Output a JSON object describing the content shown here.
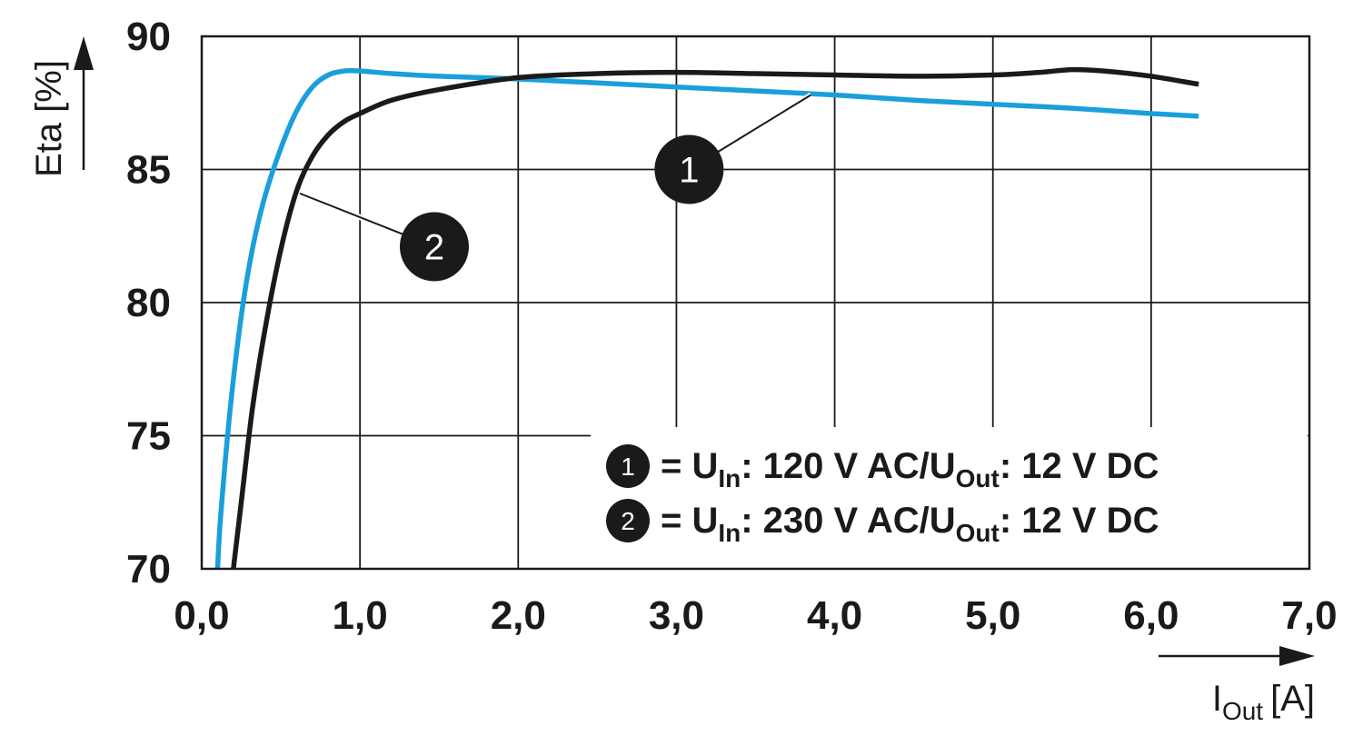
{
  "chart_data": {
    "type": "line",
    "xlabel": "I",
    "xlabel_sub": "Out",
    "xlabel_unit": "[A]",
    "ylabel": "Eta [%]",
    "xlim": [
      0,
      7
    ],
    "ylim": [
      70,
      90
    ],
    "x_ticks": [
      "0,0",
      "1,0",
      "2,0",
      "3,0",
      "4,0",
      "5,0",
      "6,0",
      "7,0"
    ],
    "y_ticks": [
      "70",
      "75",
      "80",
      "85",
      "90"
    ],
    "grid": true,
    "series": [
      {
        "name": "1",
        "color": "#1a9fdb",
        "x": [
          0.1,
          0.12,
          0.18,
          0.25,
          0.32,
          0.4,
          0.5,
          0.6,
          0.7,
          0.8,
          0.9,
          1.0,
          1.2,
          1.5,
          2.0,
          2.5,
          3.0,
          3.5,
          4.0,
          4.5,
          5.0,
          5.5,
          6.0,
          6.3
        ],
        "y": [
          70.0,
          72.0,
          76.0,
          79.5,
          82.0,
          84.0,
          85.8,
          87.2,
          88.1,
          88.55,
          88.7,
          88.7,
          88.6,
          88.5,
          88.4,
          88.25,
          88.1,
          87.95,
          87.8,
          87.6,
          87.45,
          87.3,
          87.1,
          87.0
        ]
      },
      {
        "name": "2",
        "color": "#1a1a1a",
        "x": [
          0.2,
          0.25,
          0.32,
          0.4,
          0.5,
          0.6,
          0.7,
          0.8,
          0.9,
          1.0,
          1.2,
          1.5,
          2.0,
          2.5,
          3.0,
          3.5,
          4.0,
          4.5,
          5.0,
          5.3,
          5.5,
          5.7,
          6.0,
          6.3
        ],
        "y": [
          70.0,
          72.5,
          76.0,
          79.0,
          82.0,
          84.2,
          85.5,
          86.3,
          86.8,
          87.1,
          87.6,
          88.0,
          88.45,
          88.6,
          88.65,
          88.6,
          88.55,
          88.5,
          88.55,
          88.65,
          88.75,
          88.7,
          88.5,
          88.2
        ]
      }
    ],
    "callouts": [
      {
        "label": "1",
        "point_x": 3.85,
        "point_y": 87.8,
        "badge_x": 3.08,
        "badge_y": 85.0
      },
      {
        "label": "2",
        "point_x": 0.62,
        "point_y": 84.1,
        "badge_x": 1.47,
        "badge_y": 82.1
      }
    ],
    "legend": {
      "position": "bottom-right",
      "entries": [
        {
          "badge": "1",
          "eq": "= U",
          "sub1": "In",
          "mid": ": 120 V AC/U",
          "sub2": "Out",
          "end": ": 12 V DC"
        },
        {
          "badge": "2",
          "eq": "= U",
          "sub1": "In",
          "mid": ": 230 V AC/U",
          "sub2": "Out",
          "end": ": 12 V DC"
        }
      ]
    }
  }
}
